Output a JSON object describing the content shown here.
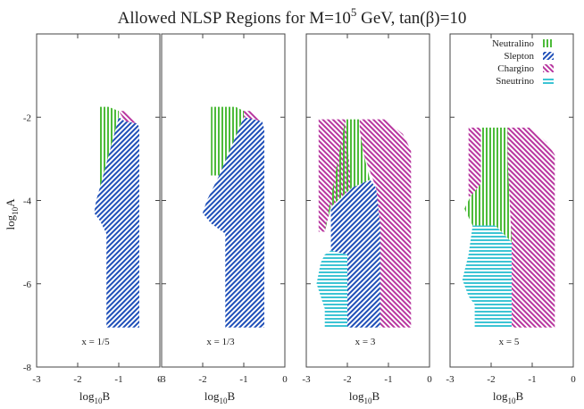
{
  "title": {
    "prefix": "Allowed NLSP Regions for M=10",
    "sup": "5",
    "suffix": " GeV, tan(β)=10"
  },
  "ylabel": {
    "base": "log",
    "sub": "10",
    "var": "A"
  },
  "xlabel": {
    "base": "log",
    "sub": "10",
    "var": "B"
  },
  "colors": {
    "neutralino": "#4dbb3a",
    "slepton": "#1f4fb8",
    "chargino": "#b8369f",
    "sneutrino": "#3dc4d4",
    "frame": "#444444"
  },
  "legend": {
    "placement": "top-right of last panel",
    "items": [
      {
        "key": "neutralino",
        "label": "Neutralino",
        "hatch": "vertical"
      },
      {
        "key": "slepton",
        "label": "Slepton",
        "hatch": "diagonal-up"
      },
      {
        "key": "chargino",
        "label": "Chargino",
        "hatch": "diagonal-down"
      },
      {
        "key": "sneutrino",
        "label": "Sneutrino",
        "hatch": "horizontal"
      }
    ]
  },
  "chart_data": {
    "type": "area",
    "title": "Allowed NLSP Regions for M=10^5 GeV, tan(β)=10",
    "xlabel": "log10 B",
    "ylabel": "log10 A",
    "y_ticks": [
      -2,
      -4,
      -6,
      -8
    ],
    "panels": [
      {
        "label": "x = 1/5",
        "xlim": [
          -3,
          0
        ],
        "x_ticks": [
          -3,
          -2,
          -1,
          0
        ],
        "ylim": [
          -8,
          0
        ],
        "regions": [
          {
            "type": "neutralino",
            "polygon": [
              [
                -1.5,
                -1.75
              ],
              [
                -1.25,
                -1.75
              ],
              [
                -1.0,
                -1.85
              ],
              [
                -1.0,
                -2.0
              ],
              [
                -1.42,
                -3.55
              ],
              [
                -1.5,
                -3.8
              ]
            ]
          },
          {
            "type": "chargino",
            "polygon": [
              [
                -1.0,
                -1.85
              ],
              [
                -0.85,
                -1.85
              ],
              [
                -0.65,
                -2.05
              ],
              [
                -0.55,
                -2.15
              ],
              [
                -0.85,
                -2.1
              ]
            ]
          },
          {
            "type": "slepton",
            "polygon": [
              [
                -1.0,
                -2.0
              ],
              [
                -0.85,
                -2.1
              ],
              [
                -0.55,
                -2.15
              ],
              [
                -0.5,
                -2.25
              ],
              [
                -0.5,
                -7.05
              ],
              [
                -1.3,
                -7.05
              ],
              [
                -1.3,
                -4.8
              ],
              [
                -1.45,
                -4.5
              ],
              [
                -1.6,
                -4.3
              ],
              [
                -1.55,
                -4.0
              ],
              [
                -1.42,
                -3.55
              ]
            ]
          }
        ]
      },
      {
        "label": "x = 1/3",
        "xlim": [
          -3,
          0
        ],
        "x_ticks": [
          -3,
          -2,
          -1,
          0
        ],
        "ylim": [
          -8,
          0
        ],
        "regions": [
          {
            "type": "neutralino",
            "polygon": [
              [
                -1.8,
                -1.75
              ],
              [
                -1.2,
                -1.75
              ],
              [
                -1.0,
                -1.85
              ],
              [
                -1.0,
                -2.0
              ],
              [
                -1.6,
                -3.4
              ],
              [
                -1.8,
                -3.4
              ]
            ]
          },
          {
            "type": "chargino",
            "polygon": [
              [
                -1.0,
                -1.85
              ],
              [
                -0.8,
                -1.85
              ],
              [
                -0.55,
                -2.1
              ],
              [
                -1.0,
                -2.0
              ]
            ]
          },
          {
            "type": "slepton",
            "polygon": [
              [
                -1.0,
                -2.0
              ],
              [
                -0.55,
                -2.1
              ],
              [
                -0.5,
                -2.3
              ],
              [
                -0.5,
                -7.05
              ],
              [
                -1.45,
                -7.05
              ],
              [
                -1.45,
                -4.8
              ],
              [
                -1.8,
                -4.55
              ],
              [
                -2.0,
                -4.3
              ],
              [
                -1.9,
                -4.0
              ],
              [
                -1.6,
                -3.4
              ]
            ]
          }
        ]
      },
      {
        "label": "x = 3",
        "xlim": [
          -3,
          0
        ],
        "x_ticks": [
          -3,
          -2,
          -1,
          0
        ],
        "ylim": [
          -8,
          0
        ],
        "regions": [
          {
            "type": "chargino",
            "polygon": [
              [
                -2.7,
                -2.05
              ],
              [
                -2.05,
                -2.05
              ],
              [
                -1.9,
                -3.7
              ],
              [
                -2.4,
                -4.15
              ],
              [
                -2.55,
                -4.75
              ],
              [
                -2.7,
                -4.75
              ]
            ]
          },
          {
            "type": "chargino",
            "polygon": [
              [
                -1.7,
                -2.05
              ],
              [
                -1.1,
                -2.05
              ],
              [
                -0.65,
                -2.4
              ],
              [
                -0.45,
                -2.8
              ],
              [
                -0.45,
                -7.05
              ],
              [
                -1.2,
                -7.05
              ],
              [
                -1.2,
                -4.6
              ],
              [
                -1.3,
                -3.7
              ],
              [
                -1.6,
                -2.9
              ],
              [
                -1.7,
                -2.3
              ]
            ]
          },
          {
            "type": "neutralino",
            "polygon": [
              [
                -2.05,
                -2.05
              ],
              [
                -1.7,
                -2.05
              ],
              [
                -1.7,
                -2.3
              ],
              [
                -1.6,
                -2.9
              ],
              [
                -1.45,
                -3.5
              ],
              [
                -1.9,
                -3.7
              ],
              [
                -2.4,
                -4.15
              ],
              [
                -2.55,
                -4.75
              ]
            ]
          },
          {
            "type": "slepton",
            "polygon": [
              [
                -1.9,
                -3.7
              ],
              [
                -1.45,
                -3.5
              ],
              [
                -1.3,
                -3.7
              ],
              [
                -1.2,
                -4.6
              ],
              [
                -1.2,
                -7.05
              ],
              [
                -2.0,
                -7.05
              ],
              [
                -2.0,
                -5.3
              ],
              [
                -2.4,
                -5.2
              ],
              [
                -2.4,
                -4.15
              ]
            ]
          },
          {
            "type": "sneutrino",
            "polygon": [
              [
                -2.4,
                -5.2
              ],
              [
                -2.0,
                -5.3
              ],
              [
                -2.0,
                -7.05
              ],
              [
                -2.55,
                -7.05
              ],
              [
                -2.55,
                -6.6
              ],
              [
                -2.65,
                -6.3
              ],
              [
                -2.75,
                -6.0
              ],
              [
                -2.65,
                -5.5
              ],
              [
                -2.55,
                -5.3
              ]
            ]
          }
        ]
      },
      {
        "label": "x = 5",
        "xlim": [
          -3,
          0
        ],
        "x_ticks": [
          -3,
          -2,
          -1,
          0
        ],
        "ylim": [
          -8,
          0
        ],
        "regions": [
          {
            "type": "chargino",
            "polygon": [
              [
                -2.55,
                -2.25
              ],
              [
                -2.25,
                -2.25
              ],
              [
                -2.25,
                -3.6
              ],
              [
                -2.5,
                -3.9
              ],
              [
                -2.55,
                -3.9
              ]
            ]
          },
          {
            "type": "chargino",
            "polygon": [
              [
                -1.6,
                -2.25
              ],
              [
                -1.05,
                -2.25
              ],
              [
                -0.65,
                -2.6
              ],
              [
                -0.45,
                -2.9
              ],
              [
                -0.45,
                -7.05
              ],
              [
                -1.5,
                -7.05
              ],
              [
                -1.5,
                -5.0
              ],
              [
                -1.6,
                -3.0
              ]
            ]
          },
          {
            "type": "neutralino",
            "polygon": [
              [
                -2.25,
                -2.25
              ],
              [
                -1.6,
                -2.25
              ],
              [
                -1.6,
                -3.0
              ],
              [
                -1.5,
                -5.0
              ],
              [
                -1.9,
                -4.6
              ],
              [
                -2.45,
                -4.6
              ],
              [
                -2.65,
                -4.2
              ],
              [
                -2.5,
                -3.9
              ],
              [
                -2.25,
                -3.6
              ]
            ]
          },
          {
            "type": "sneutrino",
            "polygon": [
              [
                -2.45,
                -4.6
              ],
              [
                -1.9,
                -4.6
              ],
              [
                -1.5,
                -5.0
              ],
              [
                -1.5,
                -7.05
              ],
              [
                -2.4,
                -7.05
              ],
              [
                -2.4,
                -6.5
              ],
              [
                -2.55,
                -6.3
              ],
              [
                -2.7,
                -5.9
              ],
              [
                -2.55,
                -5.3
              ]
            ]
          }
        ]
      }
    ]
  }
}
